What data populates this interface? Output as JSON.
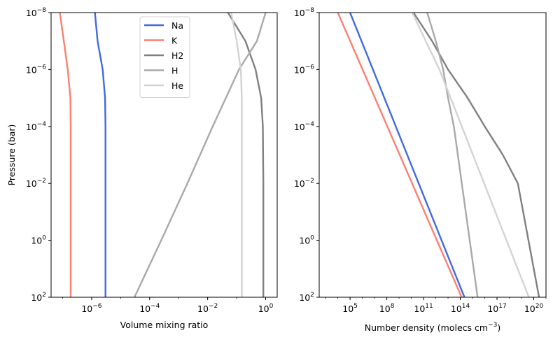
{
  "chart_data": [
    {
      "type": "line",
      "xlabel": "Volume mixing ratio",
      "ylabel": "Pressure (bar)",
      "x_scale": "log",
      "y_scale": "log",
      "y_inverted": true,
      "xlim": [
        4e-08,
        2.5
      ],
      "ylim": [
        100,
        1e-08
      ],
      "x_ticks": [
        {
          "value": 1e-06,
          "base": "10",
          "exp": "−6"
        },
        {
          "value": 0.0001,
          "base": "10",
          "exp": "−4"
        },
        {
          "value": 0.01,
          "base": "10",
          "exp": "−2"
        },
        {
          "value": 1,
          "base": "10",
          "exp": "0"
        }
      ],
      "y_ticks": [
        {
          "value": 1e-08,
          "base": "10",
          "exp": "−8"
        },
        {
          "value": 1e-06,
          "base": "10",
          "exp": "−6"
        },
        {
          "value": 0.0001,
          "base": "10",
          "exp": "−4"
        },
        {
          "value": 0.01,
          "base": "10",
          "exp": "−2"
        },
        {
          "value": 1,
          "base": "10",
          "exp": "0"
        },
        {
          "value": 100,
          "base": "10",
          "exp": "2"
        }
      ],
      "legend": {
        "position": "upper center"
      },
      "series": [
        {
          "name": "Na",
          "color": "#4169e1",
          "points": [
            [
              1.3e-06,
              1e-08
            ],
            [
              1.6e-06,
              1e-07
            ],
            [
              2.4e-06,
              1e-06
            ],
            [
              2.9e-06,
              1e-05
            ],
            [
              3e-06,
              0.0001
            ],
            [
              3e-06,
              0.01
            ],
            [
              3e-06,
              100
            ]
          ]
        },
        {
          "name": "K",
          "color": "#fa8072",
          "points": [
            [
              8e-08,
              1e-08
            ],
            [
              1.1e-07,
              1e-07
            ],
            [
              1.5e-07,
              1e-06
            ],
            [
              1.85e-07,
              1e-05
            ],
            [
              1.9e-07,
              0.0001
            ],
            [
              1.9e-07,
              0.01
            ],
            [
              1.9e-07,
              100
            ]
          ]
        },
        {
          "name": "H2",
          "color": "#808080",
          "points": [
            [
              0.05,
              1e-08
            ],
            [
              0.2,
              1e-07
            ],
            [
              0.45,
              1e-06
            ],
            [
              0.7,
              1e-05
            ],
            [
              0.8,
              0.0001
            ],
            [
              0.83,
              0.01
            ],
            [
              0.83,
              100
            ]
          ]
        },
        {
          "name": "H",
          "color": "#a9a9a9",
          "points": [
            [
              3e-05,
              100
            ],
            [
              0.00025,
              1
            ],
            [
              0.002,
              0.01
            ],
            [
              0.015,
              0.0001
            ],
            [
              0.12,
              1e-06
            ],
            [
              0.5,
              1e-07
            ],
            [
              1.0,
              1e-08
            ]
          ]
        },
        {
          "name": "He",
          "color": "#d3d3d3",
          "points": [
            [
              0.065,
              1e-08
            ],
            [
              0.1,
              1e-07
            ],
            [
              0.14,
              1e-06
            ],
            [
              0.15,
              1e-05
            ],
            [
              0.15,
              0.0001
            ],
            [
              0.15,
              0.01
            ],
            [
              0.15,
              100
            ]
          ]
        }
      ]
    },
    {
      "type": "line",
      "xlabel_main": "Number density (molecs cm",
      "xlabel_sup": "−3",
      "xlabel_end": ")",
      "ylabel": "",
      "x_scale": "log",
      "y_scale": "log",
      "y_inverted": true,
      "xlim": [
        300.0,
        1e+21
      ],
      "ylim": [
        100,
        1e-08
      ],
      "x_ticks": [
        {
          "value": 100000.0,
          "base": "10",
          "exp": "5"
        },
        {
          "value": 100000000.0,
          "base": "10",
          "exp": "8"
        },
        {
          "value": 100000000000.0,
          "base": "10",
          "exp": "11"
        },
        {
          "value": 100000000000000.0,
          "base": "10",
          "exp": "14"
        },
        {
          "value": 1e+17,
          "base": "10",
          "exp": "17"
        },
        {
          "value": 1e+20,
          "base": "10",
          "exp": "20"
        }
      ],
      "y_ticks": [
        {
          "value": 1e-08,
          "base": "10",
          "exp": "−8"
        },
        {
          "value": 1e-06,
          "base": "10",
          "exp": "−6"
        },
        {
          "value": 0.0001,
          "base": "10",
          "exp": "−4"
        },
        {
          "value": 0.01,
          "base": "10",
          "exp": "−2"
        },
        {
          "value": 1,
          "base": "10",
          "exp": "0"
        },
        {
          "value": 100,
          "base": "10",
          "exp": "2"
        }
      ],
      "series": [
        {
          "name": "Na",
          "color": "#4169e1",
          "points": [
            [
              100000.0,
              1e-08
            ],
            [
              220000000000000.0,
              100
            ]
          ]
        },
        {
          "name": "K",
          "color": "#fa8072",
          "points": [
            [
              10000.0,
              1e-08
            ],
            [
              130000000000000.0,
              100
            ]
          ]
        },
        {
          "name": "H2",
          "color": "#808080",
          "points": [
            [
              15000000000.0,
              1e-08
            ],
            [
              500000000000.0,
              1e-07
            ],
            [
              10000000000000.0,
              1e-06
            ],
            [
              400000000000000.0,
              1e-05
            ],
            [
              1e+16,
              0.0001
            ],
            [
              3e+17,
              0.001
            ],
            [
              5e+18,
              0.01
            ],
            [
              2.7e+20,
              100
            ]
          ]
        },
        {
          "name": "H",
          "color": "#a9a9a9",
          "points": [
            [
              200000000000.0,
              1e-08
            ],
            [
              1000000000000.0,
              1e-07
            ],
            [
              4000000000000.0,
              1e-06
            ],
            [
              10000000000000.0,
              1e-05
            ],
            [
              30000000000000.0,
              0.0001
            ],
            [
              2600000000000000.0,
              100
            ]
          ]
        },
        {
          "name": "He",
          "color": "#d3d3d3",
          "points": [
            [
              12000000000.0,
              1e-08
            ],
            [
              150000000000.0,
              1e-07
            ],
            [
              2000000000000.0,
              1e-06
            ],
            [
              4e+19,
              100
            ]
          ]
        }
      ]
    }
  ]
}
